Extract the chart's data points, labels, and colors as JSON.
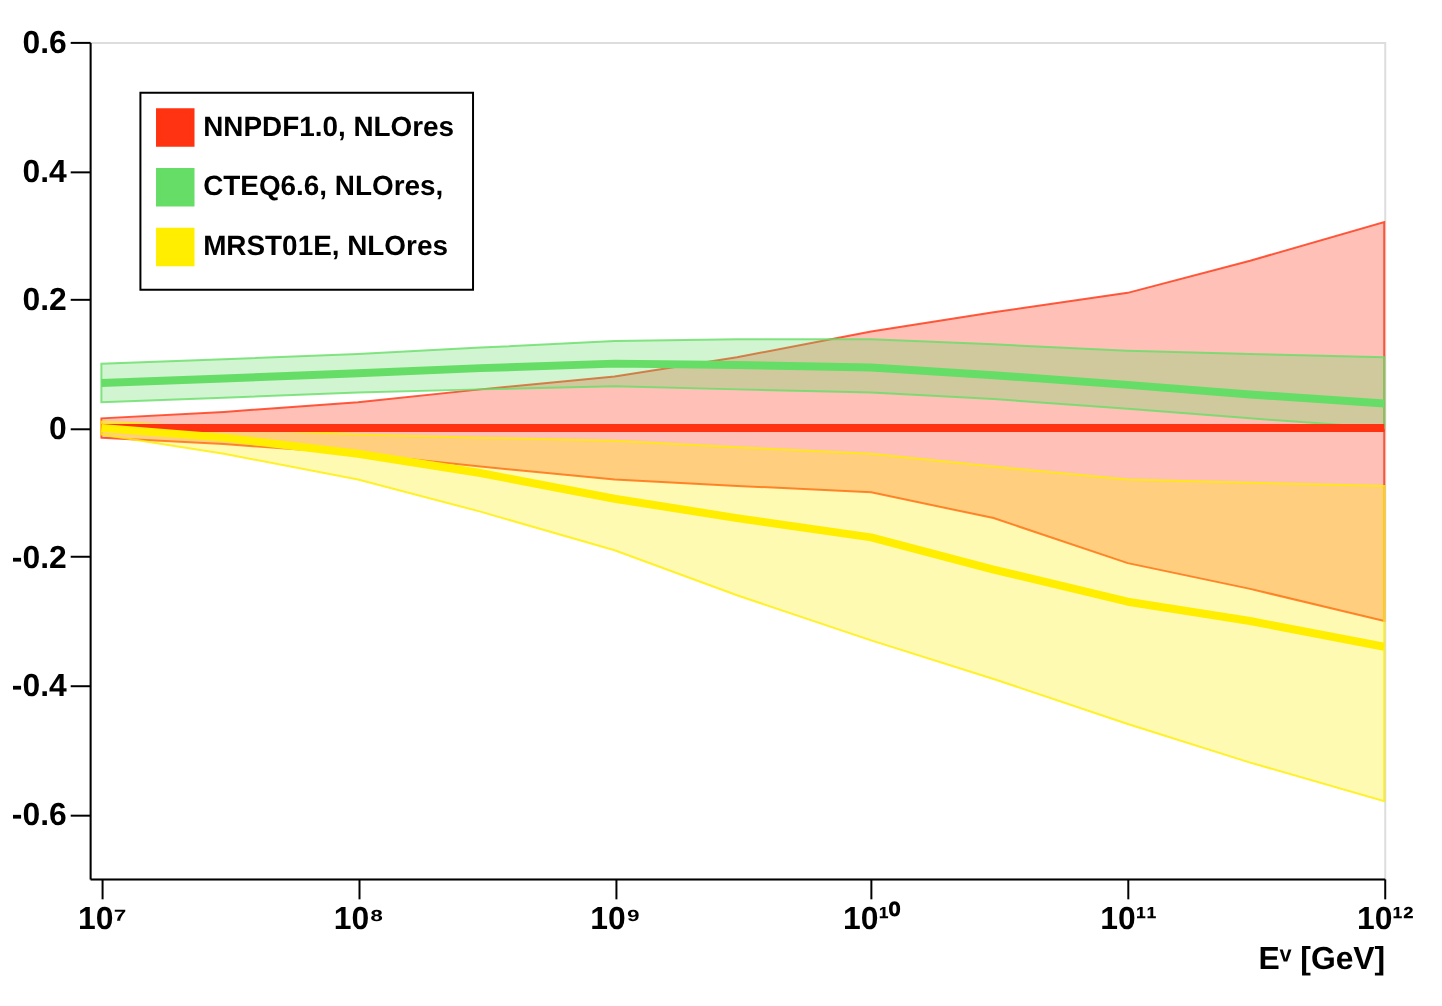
{
  "chart_data": {
    "type": "line",
    "xlabel": "Eᵛ [GeV]",
    "log": "x",
    "grid": false,
    "legend": "top left",
    "marker": "none",
    "line_style": "solid",
    "x": [
      10000000.0,
      30000000.0,
      100000000.0,
      300000000.0,
      1000000000.0,
      3000000000.0,
      10000000000.0,
      30000000000.0,
      100000000000.0,
      300000000000.0,
      1000000000000.0
    ],
    "xlim": [
      9000000.0,
      1000000000000.0
    ],
    "xticks": [
      {
        "value": 10000000.0,
        "label": "10⁷"
      },
      {
        "value": 100000000.0,
        "label": "10⁸"
      },
      {
        "value": 1000000000.0,
        "label": "10⁹"
      },
      {
        "value": 10000000000.0,
        "label": "10¹⁰"
      },
      {
        "value": 100000000000.0,
        "label": "10¹¹"
      },
      {
        "value": 1000000000000.0,
        "label": "10¹²"
      }
    ],
    "ylim": [
      -0.7,
      0.6
    ],
    "yticks": [
      -0.6,
      -0.4,
      -0.2,
      0,
      0.2,
      0.4,
      0.6
    ],
    "series": [
      {
        "name": "NNPDF1.0, NLOres",
        "color": "#ff3311",
        "values": [
          0,
          0,
          0,
          0,
          0,
          0,
          0,
          0,
          0,
          0,
          0
        ],
        "lower": [
          -0.015,
          -0.025,
          -0.04,
          -0.06,
          -0.08,
          -0.09,
          -0.1,
          -0.14,
          -0.21,
          -0.25,
          -0.3
        ],
        "upper": [
          0.015,
          0.025,
          0.04,
          0.06,
          0.08,
          0.11,
          0.15,
          0.18,
          0.21,
          0.26,
          0.32
        ]
      },
      {
        "name": "CTEQ6.6, NLOres,",
        "color": "#66dd66",
        "values": [
          0.07,
          0.077,
          0.085,
          0.093,
          0.1,
          0.098,
          0.094,
          0.082,
          0.067,
          0.052,
          0.038
        ],
        "lower": [
          0.04,
          0.047,
          0.055,
          0.06,
          0.065,
          0.06,
          0.055,
          0.045,
          0.03,
          0.015,
          0.0
        ],
        "upper": [
          0.1,
          0.107,
          0.115,
          0.125,
          0.135,
          0.138,
          0.138,
          0.13,
          0.12,
          0.115,
          0.11
        ]
      },
      {
        "name": "MRST01E, NLOres",
        "color": "#ffee00",
        "values": [
          0,
          -0.015,
          -0.04,
          -0.07,
          -0.11,
          -0.14,
          -0.17,
          -0.22,
          -0.27,
          -0.3,
          -0.34
        ],
        "lower": [
          -0.01,
          -0.04,
          -0.08,
          -0.13,
          -0.19,
          -0.26,
          -0.33,
          -0.39,
          -0.46,
          -0.52,
          -0.58
        ],
        "upper": [
          0.01,
          0.0,
          -0.01,
          -0.015,
          -0.02,
          -0.03,
          -0.04,
          -0.06,
          -0.08,
          -0.085,
          -0.09
        ]
      }
    ]
  }
}
